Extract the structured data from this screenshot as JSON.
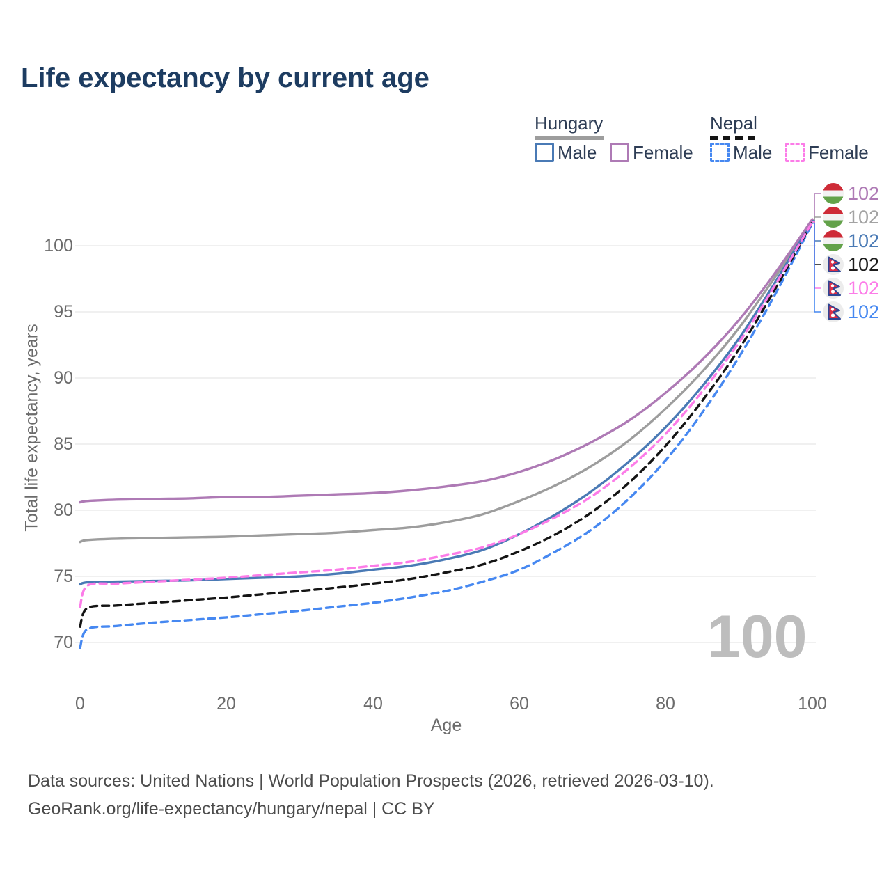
{
  "title": "Life expectancy by current age",
  "legend": {
    "groups": [
      {
        "header": "Hungary",
        "line_style": "solid",
        "items": [
          {
            "label": "Male",
            "color": "#4a7ab5"
          },
          {
            "label": "Female",
            "color": "#ae7ab5"
          }
        ]
      },
      {
        "header": "Nepal",
        "line_style": "dashed",
        "items": [
          {
            "label": "Male",
            "color": "#4688f1"
          },
          {
            "label": "Female",
            "color": "#fc7ce8"
          }
        ]
      }
    ]
  },
  "chart_data": {
    "type": "line",
    "title": "Life expectancy by current age",
    "xlabel": "Age",
    "ylabel": "Total life expectancy, years",
    "xlim": [
      0,
      100
    ],
    "ylim": [
      69,
      103
    ],
    "xticks": [
      0,
      20,
      40,
      60,
      80,
      100
    ],
    "yticks": [
      70,
      75,
      80,
      85,
      90,
      95,
      100
    ],
    "grid": "horizontal",
    "legend_position": "top-right",
    "ages": [
      0,
      1,
      5,
      10,
      15,
      20,
      25,
      30,
      35,
      40,
      45,
      50,
      55,
      60,
      65,
      70,
      75,
      80,
      85,
      90,
      95,
      100
    ],
    "series": [
      {
        "id": "hungary-total",
        "name": "Hungary",
        "color": "#9d9d9d",
        "dash": false,
        "values": [
          77.6,
          77.75,
          77.85,
          77.9,
          77.95,
          78.0,
          78.1,
          78.2,
          78.3,
          78.5,
          78.7,
          79.1,
          79.7,
          80.7,
          81.9,
          83.4,
          85.3,
          87.7,
          90.5,
          93.8,
          97.7,
          101.9
        ]
      },
      {
        "id": "hungary-male",
        "name": "Hungary Male",
        "color": "#4a7ab5",
        "dash": false,
        "values": [
          74.4,
          74.55,
          74.6,
          74.65,
          74.7,
          74.8,
          74.9,
          75.0,
          75.2,
          75.5,
          75.8,
          76.3,
          77.0,
          78.2,
          79.7,
          81.5,
          83.7,
          86.3,
          89.4,
          93.0,
          97.3,
          101.9
        ]
      },
      {
        "id": "hungary-female",
        "name": "Hungary Female",
        "color": "#ae7ab5",
        "dash": false,
        "values": [
          80.6,
          80.7,
          80.8,
          80.85,
          80.9,
          81.0,
          81.0,
          81.1,
          81.2,
          81.3,
          81.5,
          81.8,
          82.2,
          82.9,
          83.9,
          85.2,
          86.8,
          88.9,
          91.4,
          94.4,
          98.0,
          102.0
        ]
      },
      {
        "id": "nepal-male",
        "name": "Nepal Male",
        "color": "#4688f1",
        "dash": true,
        "values": [
          69.6,
          71.0,
          71.25,
          71.5,
          71.7,
          71.9,
          72.15,
          72.4,
          72.7,
          73.0,
          73.4,
          73.9,
          74.6,
          75.5,
          76.9,
          78.6,
          80.9,
          83.8,
          87.4,
          91.6,
          96.4,
          101.7
        ]
      },
      {
        "id": "nepal-total",
        "name": "Nepal",
        "color": "#141414",
        "dash": true,
        "values": [
          71.2,
          72.6,
          72.8,
          73.0,
          73.2,
          73.4,
          73.65,
          73.9,
          74.15,
          74.45,
          74.8,
          75.3,
          75.9,
          76.9,
          78.2,
          79.9,
          82.1,
          84.9,
          88.3,
          92.2,
          96.8,
          101.8
        ]
      },
      {
        "id": "nepal-female",
        "name": "Nepal Female",
        "color": "#fc7ce8",
        "dash": true,
        "values": [
          72.7,
          74.3,
          74.45,
          74.6,
          74.75,
          74.9,
          75.1,
          75.3,
          75.5,
          75.8,
          76.1,
          76.6,
          77.2,
          78.2,
          79.5,
          81.1,
          83.2,
          85.8,
          89.0,
          92.7,
          97.1,
          101.8
        ]
      }
    ]
  },
  "axes": {
    "x": {
      "label": "Age",
      "ticks": [
        "0",
        "20",
        "40",
        "60",
        "80",
        "100"
      ]
    },
    "y": {
      "label": "Total life expectancy, years",
      "ticks": [
        "70",
        "75",
        "80",
        "85",
        "90",
        "95",
        "100"
      ]
    }
  },
  "end_labels": [
    {
      "flag": "hungary",
      "series": "hungary-female",
      "value": "102",
      "color": "#ae7ab5"
    },
    {
      "flag": "hungary",
      "series": "hungary-total",
      "value": "102",
      "color": "#a3a3a3"
    },
    {
      "flag": "hungary",
      "series": "hungary-male",
      "value": "102",
      "color": "#4a7ab5"
    },
    {
      "flag": "nepal",
      "series": "nepal-total",
      "value": "102",
      "color": "#1c1c1c"
    },
    {
      "flag": "nepal",
      "series": "nepal-female",
      "value": "102",
      "color": "#fc7ce8"
    },
    {
      "flag": "nepal",
      "series": "nepal-male",
      "value": "102",
      "color": "#4688f1"
    }
  ],
  "watermark": "100",
  "footer": {
    "line1": "Data sources: United Nations | World Population Prospects (2026, retrieved 2026-03-10).",
    "line2": "GeoRank.org/life-expectancy/hungary/nepal | CC BY"
  }
}
